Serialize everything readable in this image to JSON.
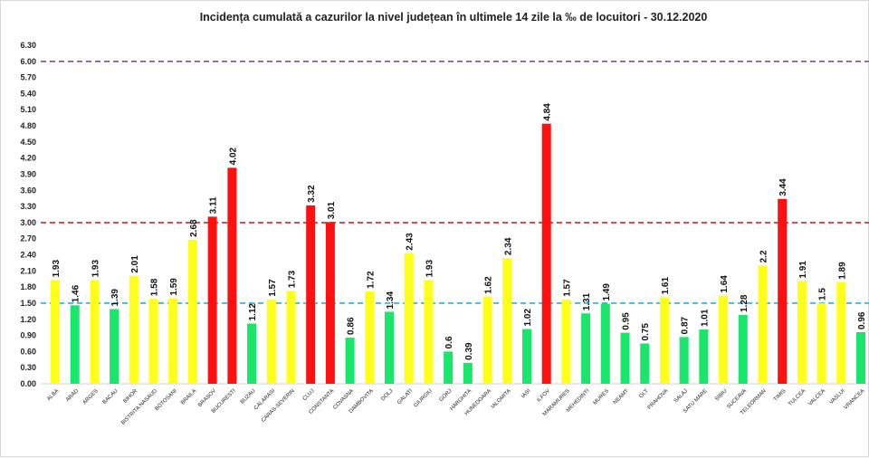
{
  "chart_data": {
    "type": "bar",
    "title": "Incidența cumulată a cazurilor la nivel județean în ultimele 14 zile la ‰ de locuitori - 30.12.2020",
    "xlabel": "",
    "ylabel": "",
    "ylim": [
      0,
      6.3
    ],
    "yticks": [
      "0.00",
      "0.30",
      "0.60",
      "0.90",
      "1.20",
      "1.50",
      "1.80",
      "2.10",
      "2.40",
      "2.70",
      "3.00",
      "3.30",
      "3.60",
      "3.90",
      "4.20",
      "4.50",
      "4.80",
      "5.10",
      "5.40",
      "5.70",
      "6.00",
      "6.30"
    ],
    "grid": false,
    "categories": [
      "ALBA",
      "ARAD",
      "ARGES",
      "BACAU",
      "BIHOR",
      "BISTRITA NASAUD",
      "BOTOSANI",
      "BRAILA",
      "BRASOV",
      "BUCURESTI",
      "BUZAU",
      "CALARASI",
      "CARAS-SEVERIN",
      "CLUJ",
      "CONSTANTA",
      "COVASNA",
      "DAMBOVITA",
      "DOLJ",
      "GALATI",
      "GIURGIU",
      "GORJ",
      "HARGHITA",
      "HUNEDOARA",
      "IALOMITA",
      "IASI",
      "ILFOV",
      "MARAMURES",
      "MEHEDINTI",
      "MURES",
      "NEAMT",
      "OLT",
      "PRAHOVA",
      "SALAJ",
      "SATU MARE",
      "SIBIU",
      "SUCEAVA",
      "TELEORMAN",
      "TIMIS",
      "TULCEA",
      "VALCEA",
      "VASLUI",
      "VRANCEA"
    ],
    "values": [
      1.93,
      1.46,
      1.93,
      1.39,
      2.01,
      1.58,
      1.59,
      2.68,
      3.11,
      4.02,
      1.12,
      1.57,
      1.73,
      3.32,
      3.01,
      0.86,
      1.72,
      1.34,
      2.43,
      1.93,
      0.6,
      0.39,
      1.62,
      2.34,
      1.02,
      4.84,
      1.57,
      1.31,
      1.49,
      0.95,
      0.75,
      1.61,
      0.87,
      1.01,
      1.64,
      1.28,
      2.2,
      3.44,
      1.91,
      1.5,
      1.89,
      0.96
    ],
    "value_labels": [
      "1.93",
      "1.46",
      "1.93",
      "1.39",
      "2.01",
      "1.58",
      "1.59",
      "2.68",
      "3.11",
      "4.02",
      "1.12",
      "1.57",
      "1.73",
      "3.32",
      "3.01",
      "0.86",
      "1.72",
      "1.34",
      "2.43",
      "1.93",
      "0.6",
      "0.39",
      "1.62",
      "2.34",
      "1.02",
      "4.84",
      "1.57",
      "1.31",
      "1.49",
      "0.95",
      "0.75",
      "1.61",
      "0.87",
      "1.01",
      "1.64",
      "1.28",
      "2.2",
      "3.44",
      "1.91",
      "1.5",
      "1.89",
      "0.96"
    ],
    "bar_colors": {
      "green": "#19E66B",
      "yellow": "#FFFF1A",
      "red": "#FF1010"
    },
    "color_rule": "green < 1.5 ≤ yellow < 3 ≤ red",
    "reference_lines": [
      {
        "value": 6.0,
        "color": "#7B4DA8",
        "style": "dashed"
      },
      {
        "value": 3.0,
        "color": "#E02020",
        "style": "dashed"
      },
      {
        "value": 1.5,
        "color": "#2AAFD8",
        "style": "dashed"
      }
    ]
  }
}
